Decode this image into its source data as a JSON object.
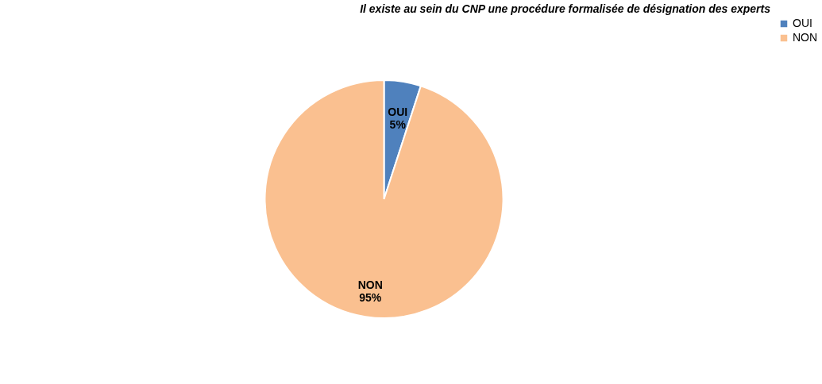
{
  "chart_data": {
    "type": "pie",
    "title": "Il existe au sein du CNP une procédure formalisée de désignation des experts",
    "categories": [
      "OUI",
      "NON"
    ],
    "values": [
      5,
      95
    ],
    "colors": [
      "#4f81bd",
      "#fac090"
    ],
    "value_labels": [
      "5%",
      "95%"
    ],
    "legend": "right"
  }
}
